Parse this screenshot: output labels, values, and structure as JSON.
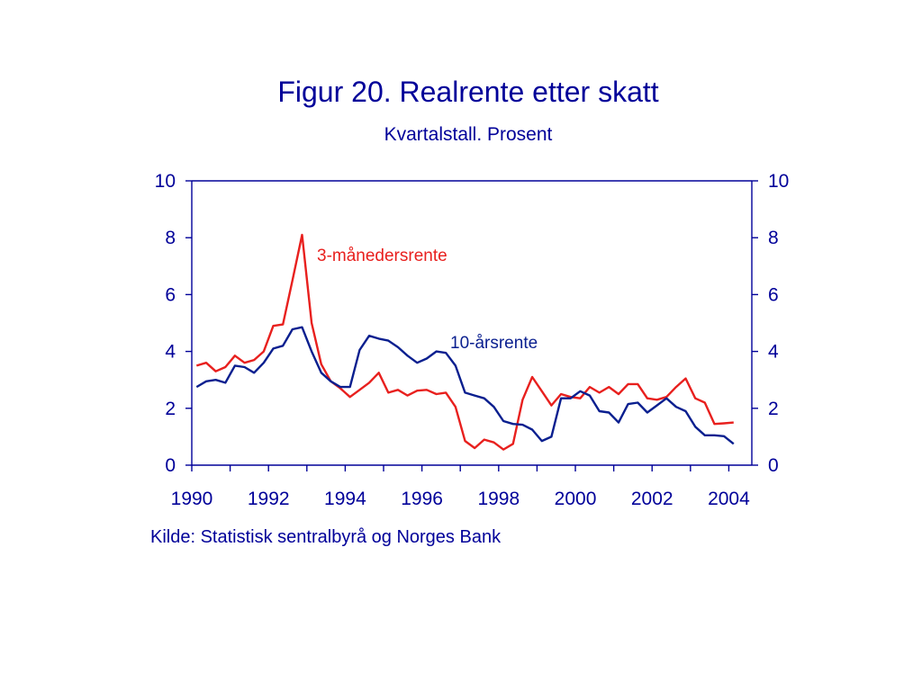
{
  "title": "Figur 20. Realrente etter skatt",
  "subtitle": "Kvartalstall. Prosent",
  "source": "Kilde: Statistisk sentralbyrå og Norges Bank",
  "colors": {
    "text": "#000099",
    "axis": "#000099",
    "series_3m": "#e8201e",
    "series_10y": "#0a1f8f"
  },
  "chart_data": {
    "type": "line",
    "title": "Figur 20. Realrente etter skatt",
    "subtitle": "Kvartalstall. Prosent",
    "xlabel": "",
    "ylabel": "",
    "xlim": [
      1990,
      2004.6
    ],
    "ylim": [
      0,
      10
    ],
    "x_ticks": [
      "1990",
      "1992",
      "1994",
      "1996",
      "1998",
      "2000",
      "2002",
      "2004"
    ],
    "y_ticks": [
      "0",
      "2",
      "4",
      "6",
      "8",
      "10"
    ],
    "y_axes": "left-and-right",
    "grid": false,
    "series": [
      {
        "name": "3-månedersrente",
        "values": [
          3.5,
          3.6,
          3.3,
          3.45,
          3.85,
          3.6,
          3.7,
          4.0,
          4.9,
          4.95,
          6.5,
          8.1,
          5.0,
          3.55,
          2.95,
          2.7,
          2.4,
          2.65,
          2.9,
          3.25,
          2.55,
          2.65,
          2.45,
          2.62,
          2.65,
          2.5,
          2.55,
          2.05,
          0.85,
          0.6,
          0.9,
          0.8,
          0.55,
          0.75,
          2.3,
          3.1,
          2.6,
          2.1,
          2.5,
          2.4,
          2.35,
          2.75,
          2.55,
          2.75,
          2.5,
          2.85,
          2.85,
          2.35,
          2.3,
          2.4,
          2.75,
          3.05,
          2.35,
          2.2,
          1.45,
          1.47,
          1.5
        ]
      },
      {
        "name": "10-årsrente",
        "values": [
          2.75,
          2.95,
          3.0,
          2.9,
          3.5,
          3.45,
          3.25,
          3.6,
          4.1,
          4.2,
          4.78,
          4.85,
          4.0,
          3.25,
          2.95,
          2.75,
          2.75,
          4.05,
          4.55,
          4.45,
          4.38,
          4.15,
          3.85,
          3.6,
          3.75,
          4.0,
          3.95,
          3.5,
          2.55,
          2.45,
          2.35,
          2.05,
          1.55,
          1.45,
          1.42,
          1.25,
          0.85,
          1.0,
          2.35,
          2.35,
          2.6,
          2.45,
          1.9,
          1.85,
          1.5,
          2.15,
          2.2,
          1.85,
          2.1,
          2.35,
          2.05,
          1.9,
          1.35,
          1.05,
          1.05,
          1.02,
          0.75
        ]
      }
    ],
    "annotations": [
      "3-månedersrente",
      "10-årsrente"
    ]
  }
}
